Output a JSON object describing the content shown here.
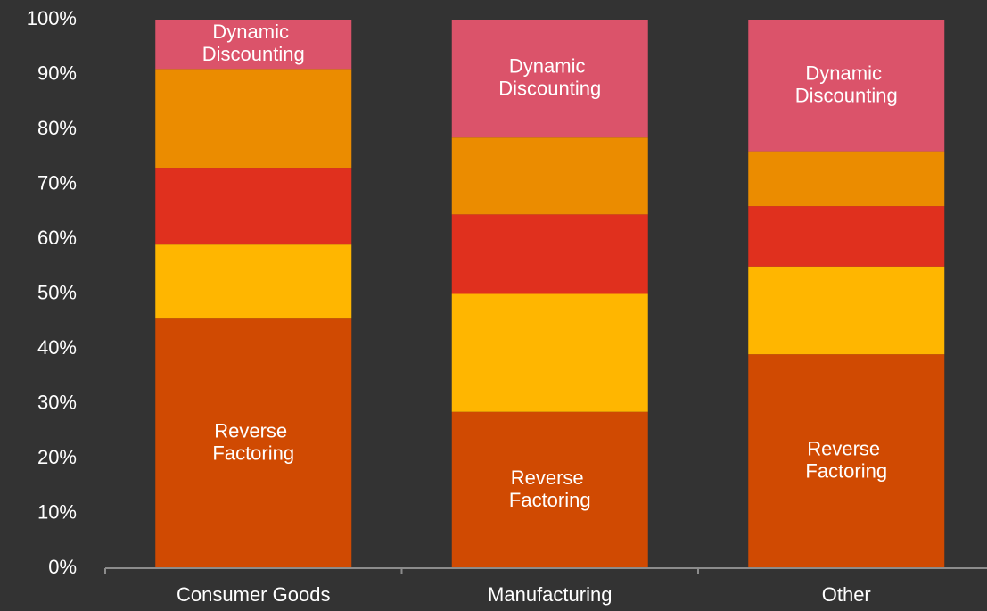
{
  "chart_data": {
    "type": "stacked_bar",
    "categories": [
      "Consumer Goods",
      "Manufacturing",
      "Other"
    ],
    "series": [
      {
        "name": "Reverse Factoring",
        "color": "#d04a02",
        "values": [
          45.5,
          28.5,
          39
        ]
      },
      {
        "color": "#ffb600",
        "values": [
          13.5,
          21.5,
          16
        ]
      },
      {
        "color": "#e0301e",
        "values": [
          14,
          14.5,
          11
        ]
      },
      {
        "color": "#eb8c00",
        "values": [
          18,
          14,
          10
        ]
      },
      {
        "name": "Dynamic Discounting",
        "color": "#db536a",
        "values": [
          9,
          21.5,
          24
        ]
      }
    ],
    "ylim": [
      0,
      100
    ],
    "yticks": [
      {
        "value": 0,
        "label": "0%"
      },
      {
        "value": 10,
        "label": "10%"
      },
      {
        "value": 20,
        "label": "20%"
      },
      {
        "value": 30,
        "label": "30%"
      },
      {
        "value": 40,
        "label": "40%"
      },
      {
        "value": 50,
        "label": "50%"
      },
      {
        "value": 60,
        "label": "60%"
      },
      {
        "value": 70,
        "label": "70%"
      },
      {
        "value": 80,
        "label": "80%"
      },
      {
        "value": 90,
        "label": "90%"
      },
      {
        "value": 100,
        "label": "100%"
      }
    ],
    "grid": false
  }
}
